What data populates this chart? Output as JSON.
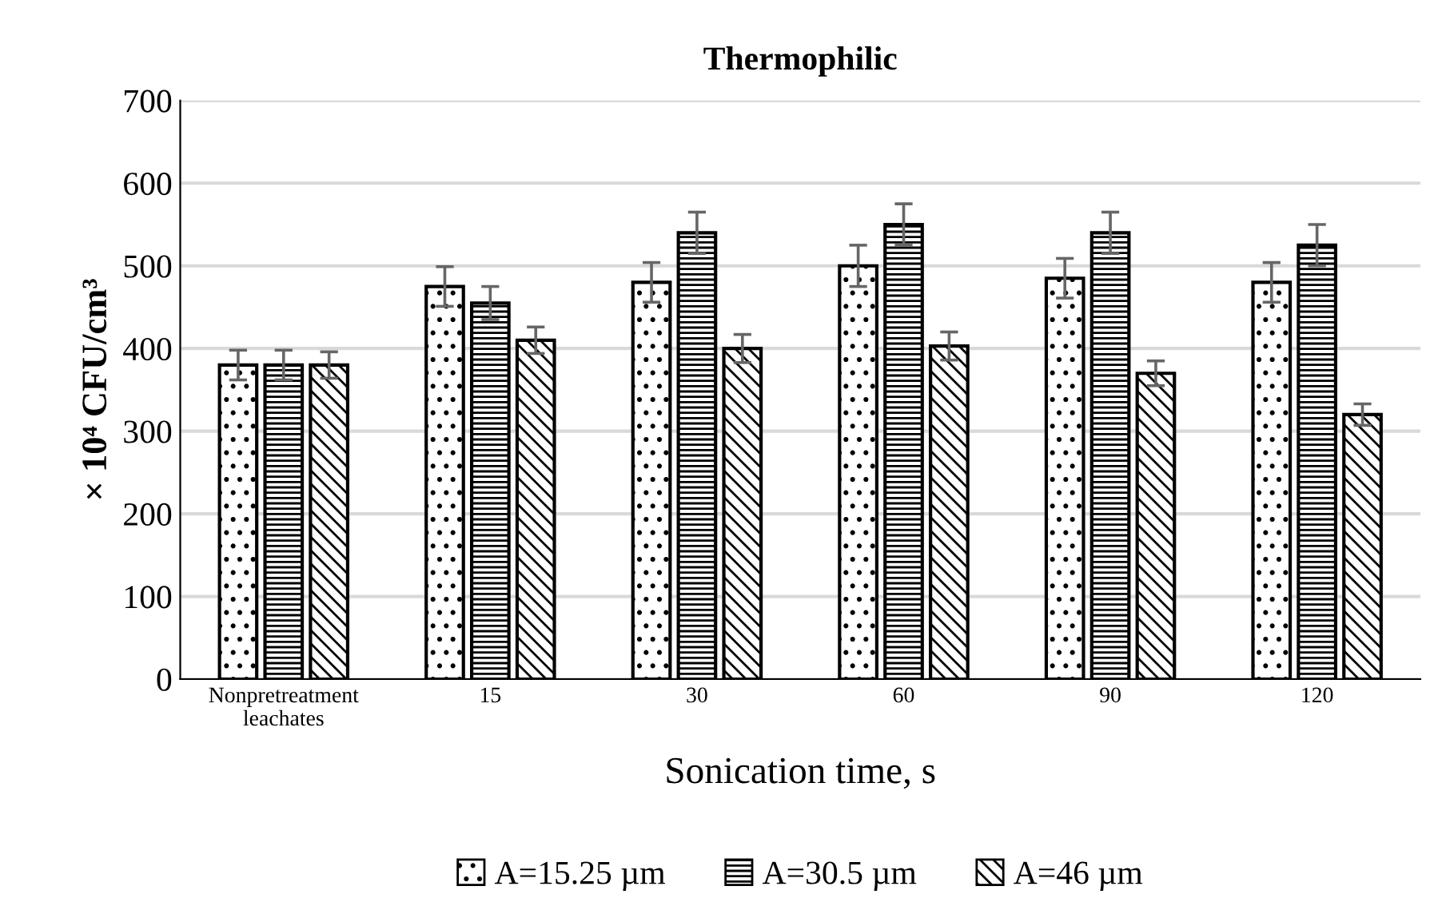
{
  "chart_data": {
    "type": "bar",
    "title": "Thermophilic",
    "xlabel": "Sonication time, s",
    "ylabel": "× 10⁴ CFU/cm³",
    "categories": [
      "Nonpretreatment\nleachates",
      "15",
      "30",
      "60",
      "90",
      "120"
    ],
    "series": [
      {
        "name": "A=15.25 µm",
        "color": "#000000",
        "values": [
          380,
          475,
          480,
          500,
          485,
          480
        ],
        "errors": [
          18,
          24,
          24,
          25,
          24,
          24
        ]
      },
      {
        "name": "A=30.5 µm",
        "color": "#000000",
        "values": [
          380,
          455,
          540,
          550,
          540,
          525
        ],
        "errors": [
          18,
          20,
          25,
          25,
          25,
          25
        ]
      },
      {
        "name": "A=46 µm",
        "color": "#000000",
        "values": [
          380,
          410,
          400,
          403,
          370,
          320
        ],
        "errors": [
          16,
          16,
          17,
          17,
          15,
          13
        ]
      }
    ],
    "ylim": [
      0,
      700
    ],
    "yticks": [
      0,
      100,
      200,
      300,
      400,
      500,
      600,
      700
    ],
    "grid": "y",
    "legend": "bottom"
  }
}
